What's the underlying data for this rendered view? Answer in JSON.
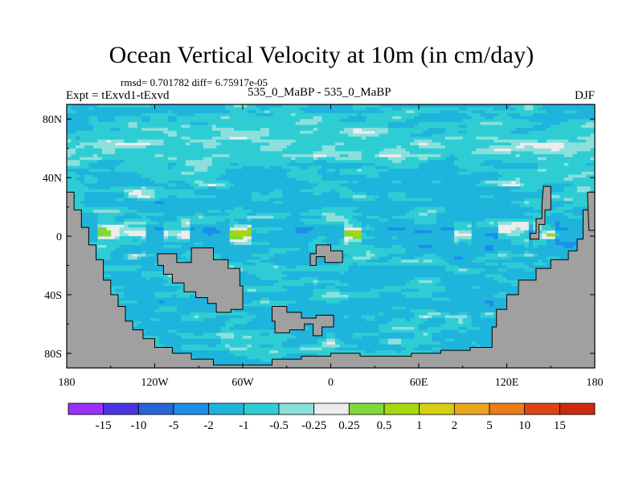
{
  "title": "Ocean Vertical Velocity at 10m (in cm/day)",
  "stats_text": "rmsd= 0.701782 diff= 6.75917e-05",
  "experiment_label": "Expt = tExvd1-tExvd",
  "case_label": "535_0_MaBP - 535_0_MaBP",
  "season_label": "DJF",
  "chart_data": {
    "type": "heatmap",
    "projection": "cylindrical equidistant",
    "xlim": [
      -180,
      180
    ],
    "ylim": [
      -90,
      90
    ],
    "x_ticks": [
      {
        "value": -180,
        "label": "180"
      },
      {
        "value": -120,
        "label": "120W"
      },
      {
        "value": -60,
        "label": "60W"
      },
      {
        "value": 0,
        "label": "0"
      },
      {
        "value": 60,
        "label": "60E"
      },
      {
        "value": 120,
        "label": "120E"
      },
      {
        "value": 180,
        "label": "180"
      }
    ],
    "y_ticks": [
      {
        "value": 80,
        "label": "80N"
      },
      {
        "value": 40,
        "label": "40N"
      },
      {
        "value": 0,
        "label": "0"
      },
      {
        "value": -40,
        "label": "40S"
      },
      {
        "value": -80,
        "label": "80S"
      }
    ],
    "colorbar": {
      "boundaries": [
        "-15",
        "-10",
        "-5",
        "-2",
        "-1",
        "-0.5",
        "-0.25",
        "0.25",
        "0.5",
        "1",
        "2",
        "5",
        "10",
        "15"
      ],
      "colors": [
        "#9b30ff",
        "#4a36e0",
        "#2a63d8",
        "#1a8ee8",
        "#1fb4dc",
        "#2ecdd4",
        "#8be0dc",
        "#ececec",
        "#7ed93a",
        "#a8d60f",
        "#d4cf13",
        "#e8a41b",
        "#e97d18",
        "#dc4418",
        "#cc2a12"
      ]
    },
    "land_color": "#a0a0a0",
    "mask_value_color": "#ececec"
  }
}
